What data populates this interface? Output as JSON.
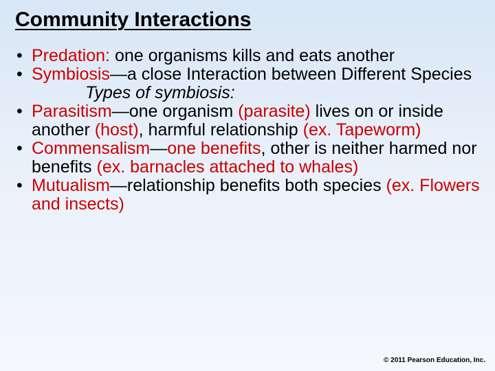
{
  "title": "Community Interactions",
  "bullets": {
    "b1": {
      "term": "Predation",
      "colon": ": ",
      "def": "one organisms kills and eats another"
    },
    "b2": {
      "term": "Symbiosis",
      "dash": "—",
      "def": "a close Interaction between Different Species"
    },
    "sub": "Types of symbiosis:",
    "b3": {
      "term": "Parasitism",
      "dash": "—",
      "def1": "one organism ",
      "r1": "(parasite)",
      "def2": " lives on or inside another ",
      "r2": "(host)",
      "def3": ", harmful relationship ",
      "r3": "(ex. Tapeworm)"
    },
    "b4": {
      "term": "Commensalism",
      "dash": "—",
      "r1": "one benefits",
      "def1": ", other is neither harmed nor benefits ",
      "r2": "(ex. barnacles attached to whales)"
    },
    "b5": {
      "term": "Mutualism",
      "dash": "—",
      "def1": "relationship benefits both species ",
      "r1": "(ex. Flowers and insects)"
    }
  },
  "footer": "© 2011 Pearson Education, Inc.",
  "colors": {
    "red": "#cc0000"
  }
}
